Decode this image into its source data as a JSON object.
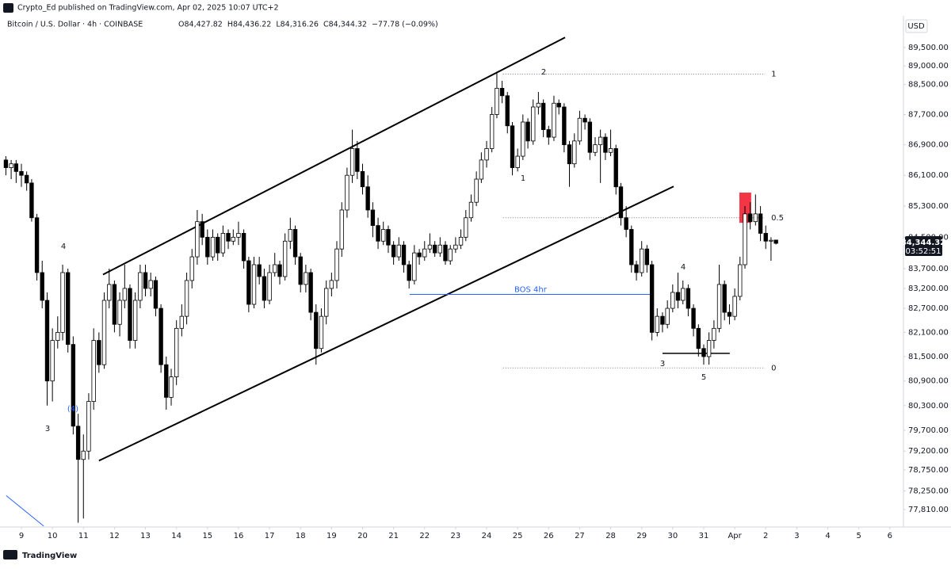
{
  "header": {
    "publisher": "Crypto_Ed published on TradingView.com, Apr 02, 2025 10:07 UTC+2",
    "symbol": "Bitcoin / U.S. Dollar · 4h · COINBASE",
    "ohlc": [
      {
        "value": 84427.82,
        "label": "O84,427.82"
      },
      {
        "value": 84436.22,
        "label": "H84,436.22"
      },
      {
        "value": 84316.26,
        "label": "L84,316.26"
      },
      {
        "value": 84344.32,
        "label": "C84,344.32"
      }
    ],
    "change": {
      "value": -77.78,
      "label": "−77.78 (−0.09%)"
    },
    "currency": "USD"
  },
  "footer": {
    "brand": "TradingView"
  },
  "chart_data": {
    "type": "candlestick",
    "log_scale": true,
    "up_color": "#ffffff",
    "down_color": "#000000",
    "edge_color": "#000000",
    "x": [
      -0.5,
      -0.33,
      -0.17,
      0,
      0.17,
      0.33,
      0.5,
      0.67,
      0.83,
      1,
      1.17,
      1.33,
      1.5,
      1.67,
      1.83,
      2,
      2.17,
      2.33,
      2.5,
      2.67,
      2.83,
      3,
      3.17,
      3.33,
      3.5,
      3.67,
      3.83,
      4,
      4.17,
      4.33,
      4.5,
      4.67,
      4.83,
      5,
      5.17,
      5.33,
      5.5,
      5.67,
      5.83,
      6,
      6.17,
      6.33,
      6.5,
      6.67,
      6.83,
      7,
      7.17,
      7.33,
      7.5,
      7.67,
      7.83,
      8,
      8.17,
      8.33,
      8.5,
      8.67,
      8.83,
      9,
      9.17,
      9.33,
      9.5,
      9.67,
      9.83,
      10,
      10.17,
      10.33,
      10.5,
      10.67,
      10.83,
      11,
      11.17,
      11.33,
      11.5,
      11.67,
      11.83,
      12,
      12.17,
      12.33,
      12.5,
      12.67,
      12.83,
      13,
      13.17,
      13.33,
      13.5,
      13.67,
      13.83,
      14,
      14.17,
      14.33,
      14.5,
      14.67,
      14.83,
      15,
      15.17,
      15.33,
      15.5,
      15.67,
      15.83,
      16,
      16.17,
      16.33,
      16.5,
      16.67,
      16.83,
      17,
      17.17,
      17.33,
      17.5,
      17.67,
      17.83,
      18,
      18.17,
      18.33,
      18.5,
      18.67,
      18.83,
      19,
      19.17,
      19.33,
      19.5,
      19.67,
      19.83,
      20,
      20.17,
      20.33,
      20.5,
      20.67,
      20.83,
      21,
      21.17,
      21.33,
      21.5,
      21.67,
      21.83,
      22,
      22.17,
      22.33,
      22.5,
      22.67,
      22.83,
      23,
      23.17,
      23.33,
      23.5,
      23.67,
      23.83,
      24,
      24.17,
      24.33
    ],
    "open": [
      86500,
      86300,
      86400,
      86200,
      86100,
      85900,
      85000,
      83600,
      82900,
      80900,
      81900,
      82100,
      83600,
      81800,
      79800,
      79000,
      79200,
      80400,
      81900,
      81300,
      82900,
      83300,
      82300,
      82900,
      83200,
      81900,
      82900,
      83600,
      83200,
      83400,
      82700,
      81300,
      80500,
      81000,
      82200,
      82500,
      83400,
      84000,
      84900,
      84500,
      84000,
      84500,
      84100,
      84600,
      84400,
      84500,
      84600,
      83900,
      82800,
      83800,
      83500,
      82900,
      83600,
      83800,
      83500,
      84400,
      84700,
      84000,
      83300,
      83600,
      82600,
      81700,
      82500,
      83200,
      83400,
      84200,
      85200,
      86100,
      86800,
      86200,
      85800,
      85200,
      84800,
      84400,
      84700,
      84300,
      84000,
      84300,
      83800,
      83400,
      84100,
      84000,
      84200,
      84300,
      84100,
      84300,
      83900,
      84200,
      84300,
      84500,
      85000,
      85400,
      86000,
      86500,
      86800,
      87700,
      88400,
      88200,
      87400,
      86300,
      86600,
      87500,
      87000,
      87900,
      88000,
      87300,
      87100,
      88000,
      87900,
      86900,
      86400,
      87000,
      87600,
      87500,
      86700,
      86900,
      87100,
      86700,
      86800,
      85800,
      85000,
      84700,
      83800,
      83600,
      84200,
      83800,
      82100,
      82500,
      82300,
      82700,
      83100,
      82900,
      83200,
      82700,
      82200,
      81700,
      81500,
      81900,
      82200,
      83300,
      82600,
      82500,
      83000,
      83800,
      85100,
      84900,
      85100,
      84600,
      84400,
      84427.82
    ],
    "high": [
      86600,
      86500,
      86500,
      86400,
      86200,
      86000,
      85100,
      83900,
      83100,
      82200,
      82500,
      83800,
      83700,
      82000,
      80100,
      79600,
      80600,
      82200,
      82100,
      83100,
      83700,
      83400,
      83100,
      83800,
      83300,
      83100,
      83800,
      83800,
      83600,
      83500,
      82800,
      81500,
      81200,
      82400,
      82800,
      83600,
      84200,
      85200,
      85100,
      84700,
      84700,
      84600,
      84800,
      84700,
      84700,
      84900,
      84700,
      84000,
      84000,
      84000,
      83700,
      83800,
      84100,
      83900,
      84600,
      85000,
      84800,
      84100,
      83800,
      83700,
      82800,
      82700,
      83400,
      83600,
      84400,
      85400,
      86300,
      87300,
      87000,
      86400,
      86100,
      85400,
      85000,
      84900,
      84800,
      84400,
      84500,
      84400,
      83900,
      84300,
      84200,
      84400,
      84600,
      84400,
      84500,
      84400,
      84300,
      84500,
      84700,
      85200,
      85600,
      86200,
      86700,
      87000,
      87900,
      88800,
      88600,
      88300,
      87500,
      86800,
      87700,
      87600,
      88100,
      88300,
      88100,
      87400,
      88200,
      88100,
      88000,
      87000,
      87200,
      87800,
      87700,
      87600,
      87100,
      87300,
      87200,
      87300,
      86900,
      85900,
      85300,
      84800,
      83900,
      84400,
      84300,
      83900,
      82700,
      82600,
      82900,
      83300,
      83600,
      83400,
      83300,
      82800,
      82300,
      81800,
      82100,
      82400,
      83800,
      83400,
      82800,
      83200,
      84000,
      85300,
      85400,
      85600,
      85300,
      84800,
      84500,
      84436.22
    ],
    "low": [
      86100,
      86000,
      85900,
      85800,
      85700,
      84900,
      83400,
      82700,
      80300,
      80400,
      81700,
      81900,
      81600,
      79600,
      77500,
      77600,
      79000,
      80200,
      81100,
      81200,
      82700,
      82100,
      82000,
      82700,
      81700,
      81700,
      82700,
      83000,
      83000,
      82500,
      81100,
      80200,
      80300,
      80800,
      82000,
      82300,
      83200,
      83800,
      84300,
      83800,
      83900,
      83900,
      84000,
      84200,
      84300,
      84300,
      83700,
      82600,
      82700,
      83300,
      82700,
      82800,
      83500,
      83300,
      83400,
      84200,
      83800,
      83100,
      83100,
      82400,
      81300,
      81600,
      82300,
      83000,
      83200,
      84000,
      85000,
      85900,
      86000,
      85600,
      85000,
      84500,
      84200,
      84300,
      84100,
      83800,
      83900,
      83600,
      83200,
      83300,
      83800,
      83900,
      84100,
      84000,
      84000,
      83800,
      83800,
      84100,
      84200,
      84400,
      84900,
      85300,
      85900,
      86300,
      86700,
      87600,
      88000,
      87200,
      86100,
      86200,
      86500,
      86800,
      86900,
      87700,
      87100,
      86900,
      87000,
      87700,
      86700,
      85800,
      86300,
      86900,
      87300,
      86500,
      86600,
      85900,
      86500,
      86600,
      85600,
      84800,
      84500,
      83600,
      83400,
      83500,
      83600,
      81900,
      82000,
      82100,
      82200,
      82600,
      82700,
      82800,
      82500,
      82000,
      81500,
      81300,
      81300,
      81700,
      82100,
      82400,
      82300,
      82400,
      82900,
      83700,
      84700,
      84800,
      84400,
      84200,
      83900,
      84316.26
    ],
    "close": [
      86300,
      86400,
      86200,
      86100,
      85900,
      85000,
      83600,
      82900,
      80900,
      81900,
      82100,
      83600,
      81800,
      79800,
      79000,
      79200,
      80400,
      81900,
      81300,
      82900,
      83300,
      82300,
      82900,
      83200,
      81900,
      82900,
      83600,
      83200,
      83400,
      82700,
      81300,
      80500,
      81000,
      82200,
      82500,
      83400,
      84000,
      84900,
      84500,
      84000,
      84500,
      84100,
      84600,
      84400,
      84500,
      84600,
      83900,
      82800,
      83800,
      83500,
      82900,
      83600,
      83800,
      83500,
      84400,
      84700,
      84000,
      83300,
      83600,
      82600,
      81700,
      82500,
      83200,
      83400,
      84200,
      85200,
      86100,
      86800,
      86200,
      85800,
      85200,
      84800,
      84400,
      84700,
      84300,
      84000,
      84300,
      83800,
      83400,
      84100,
      84000,
      84200,
      84300,
      84100,
      84300,
      83900,
      84200,
      84300,
      84500,
      85000,
      85400,
      86000,
      86500,
      86800,
      87700,
      88400,
      88200,
      87400,
      86300,
      86600,
      87500,
      87000,
      87900,
      88000,
      87300,
      87100,
      88000,
      87900,
      86900,
      86400,
      87000,
      87600,
      87500,
      86700,
      86900,
      87100,
      86700,
      86800,
      85800,
      85000,
      84700,
      83800,
      83600,
      84200,
      83800,
      82100,
      82500,
      82300,
      82700,
      83100,
      82900,
      83200,
      82700,
      82200,
      81700,
      81500,
      81900,
      82200,
      83300,
      82600,
      82500,
      83000,
      83800,
      85100,
      84900,
      85100,
      84600,
      84400,
      84422.1,
      84344.32
    ],
    "xlim": [
      -0.69,
      28.44
    ],
    "xticks": [
      {
        "value": 0,
        "label": "9"
      },
      {
        "value": 1,
        "label": "10"
      },
      {
        "value": 2,
        "label": "11"
      },
      {
        "value": 3,
        "label": "12"
      },
      {
        "value": 4,
        "label": "13"
      },
      {
        "value": 5,
        "label": "14"
      },
      {
        "value": 6,
        "label": "15"
      },
      {
        "value": 7,
        "label": "16"
      },
      {
        "value": 8,
        "label": "17"
      },
      {
        "value": 9,
        "label": "18"
      },
      {
        "value": 10,
        "label": "19"
      },
      {
        "value": 11,
        "label": "20"
      },
      {
        "value": 12,
        "label": "21"
      },
      {
        "value": 13,
        "label": "22"
      },
      {
        "value": 14,
        "label": "23"
      },
      {
        "value": 15,
        "label": "24"
      },
      {
        "value": 16,
        "label": "25"
      },
      {
        "value": 17,
        "label": "26"
      },
      {
        "value": 18,
        "label": "27"
      },
      {
        "value": 19,
        "label": "28"
      },
      {
        "value": 20,
        "label": "29"
      },
      {
        "value": 21,
        "label": "30"
      },
      {
        "value": 22,
        "label": "31"
      },
      {
        "value": 23,
        "label": "Apr"
      },
      {
        "value": 24,
        "label": "2"
      },
      {
        "value": 25,
        "label": "3"
      },
      {
        "value": 26,
        "label": "4"
      },
      {
        "value": 27,
        "label": "5"
      },
      {
        "value": 28,
        "label": "6"
      }
    ],
    "ylim": [
      77400,
      90360
    ],
    "yticks": [
      {
        "value": 89500,
        "label": "89,500.00"
      },
      {
        "value": 89000,
        "label": "89,000.00"
      },
      {
        "value": 88500,
        "label": "88,500.00"
      },
      {
        "value": 87700,
        "label": "87,700.00"
      },
      {
        "value": 86900,
        "label": "86,900.00"
      },
      {
        "value": 86100,
        "label": "86,100.00"
      },
      {
        "value": 85300,
        "label": "85,300.00"
      },
      {
        "value": 84500,
        "label": "84,500.00"
      },
      {
        "value": 83700,
        "label": "83,700.00"
      },
      {
        "value": 83200,
        "label": "83,200.00"
      },
      {
        "value": 82700,
        "label": "82,700.00"
      },
      {
        "value": 82100,
        "label": "82,100.00"
      },
      {
        "value": 81500,
        "label": "81,500.00"
      },
      {
        "value": 80900,
        "label": "80,900.00"
      },
      {
        "value": 80300,
        "label": "80,300.00"
      },
      {
        "value": 79700,
        "label": "79,700.00"
      },
      {
        "value": 79200,
        "label": "79,200.00"
      },
      {
        "value": 78750,
        "label": "78,750.00"
      },
      {
        "value": 78250,
        "label": "78,250.00"
      },
      {
        "value": 77810,
        "label": "77,810.00"
      }
    ],
    "price_label": {
      "value": 84344.32,
      "label": "84,344.32",
      "countdown": "03:52:51",
      "color": "#131722"
    },
    "channel": [
      {
        "x": [
          2.63,
          17.53
        ],
        "y": [
          83550,
          89770
        ],
        "color": "#000000"
      },
      {
        "x": [
          2.5,
          21.03
        ],
        "y": [
          78970,
          85810
        ],
        "color": "#000000"
      }
    ],
    "trend_line": {
      "x": [
        -0.49,
        0.72
      ],
      "y": [
        78140,
        77420
      ],
      "color": "#2962ff"
    },
    "fib": {
      "x": [
        15.53,
        23.97
      ],
      "color": "#787b86",
      "levels": [
        {
          "name": "1",
          "price": 88780
        },
        {
          "name": "0.5",
          "price": 85000
        },
        {
          "name": "0",
          "price": 81220
        }
      ]
    },
    "bos": {
      "name": "BOS 4hr",
      "x": [
        12.52,
        20.31
      ],
      "price": 83050,
      "color": "#2962ff"
    },
    "support": {
      "x": [
        20.67,
        22.84
      ],
      "price": 81580,
      "color": "#000000"
    },
    "zone": {
      "x": [
        23.15,
        23.53
      ],
      "y": [
        84870,
        85650
      ],
      "color": "#f23645"
    },
    "wave_labels": [
      "4",
      "3",
      "(4)",
      "2",
      "1",
      "4",
      "3",
      "5"
    ]
  }
}
